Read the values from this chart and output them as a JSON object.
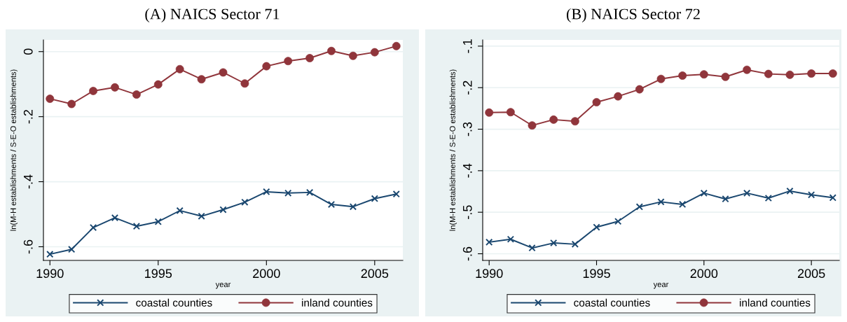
{
  "chart_data": [
    {
      "type": "line",
      "title": "(A) NAICS Sector 71",
      "xlabel": "year",
      "ylabel": "ln(M-H establishments / S-E-O establishments)",
      "x": [
        1990,
        1991,
        1992,
        1993,
        1994,
        1995,
        1996,
        1997,
        1998,
        1999,
        2000,
        2001,
        2002,
        2003,
        2004,
        2005,
        2006
      ],
      "series": [
        {
          "name": "coastal counties",
          "color": "#1a476f",
          "marker": "cross",
          "values": [
            -0.623,
            -0.608,
            -0.541,
            -0.511,
            -0.537,
            -0.523,
            -0.489,
            -0.506,
            -0.486,
            -0.463,
            -0.431,
            -0.435,
            -0.433,
            -0.47,
            -0.477,
            -0.452,
            -0.438
          ]
        },
        {
          "name": "inland counties",
          "color": "#90353b",
          "marker": "circle",
          "values": [
            -0.145,
            -0.161,
            -0.121,
            -0.11,
            -0.132,
            -0.101,
            -0.054,
            -0.085,
            -0.064,
            -0.098,
            -0.045,
            -0.029,
            -0.02,
            0.002,
            -0.013,
            -0.002,
            0.017
          ]
        }
      ],
      "xlim": [
        1989.7,
        2006.3
      ],
      "ylim": [
        -0.642,
        0.036
      ],
      "xticks": [
        1990,
        1995,
        2000,
        2005
      ],
      "yticks": [
        {
          "value": -0.6,
          "label": "-.6"
        },
        {
          "value": -0.4,
          "label": "-.4"
        },
        {
          "value": -0.2,
          "label": "-.2"
        },
        0
      ],
      "grid": "y",
      "legend": "bottom"
    },
    {
      "type": "line",
      "title": "(B) NAICS Sector 72",
      "xlabel": "year",
      "ylabel": "ln(M-H establishments / S-E-O establishments)",
      "x": [
        1990,
        1991,
        1992,
        1993,
        1994,
        1995,
        1996,
        1997,
        1998,
        1999,
        2000,
        2001,
        2002,
        2003,
        2004,
        2005,
        2006
      ],
      "series": [
        {
          "name": "coastal counties",
          "color": "#1a476f",
          "marker": "cross",
          "values": [
            -0.572,
            -0.565,
            -0.586,
            -0.574,
            -0.577,
            -0.536,
            -0.522,
            -0.487,
            -0.475,
            -0.481,
            -0.454,
            -0.468,
            -0.454,
            -0.466,
            -0.449,
            -0.458,
            -0.465
          ]
        },
        {
          "name": "inland counties",
          "color": "#90353b",
          "marker": "circle",
          "values": [
            -0.26,
            -0.259,
            -0.291,
            -0.277,
            -0.281,
            -0.235,
            -0.221,
            -0.204,
            -0.179,
            -0.171,
            -0.168,
            -0.174,
            -0.157,
            -0.167,
            -0.169,
            -0.166,
            -0.166
          ]
        }
      ],
      "xlim": [
        1989.7,
        2006.3
      ],
      "ylim": [
        -0.616,
        -0.085
      ],
      "xticks": [
        1990,
        1995,
        2000,
        2005
      ],
      "yticks": [
        {
          "value": -0.6,
          "label": "-.6"
        },
        {
          "value": -0.5,
          "label": "-.5"
        },
        {
          "value": -0.4,
          "label": "-.4"
        },
        {
          "value": -0.3,
          "label": "-.3"
        },
        {
          "value": -0.2,
          "label": "-.2"
        },
        {
          "value": -0.1,
          "label": "-.1"
        }
      ],
      "grid": "y",
      "legend": "bottom"
    }
  ]
}
